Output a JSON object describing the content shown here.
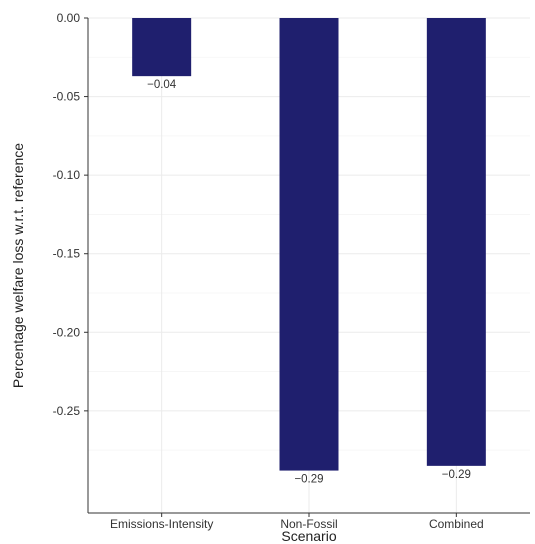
{
  "chart_data": {
    "type": "bar",
    "categories": [
      "Emissions-Intensity",
      "Non-Fossil",
      "Combined"
    ],
    "values": [
      -0.037,
      -0.288,
      -0.285
    ],
    "data_labels": [
      "−0.04",
      "−0.29",
      "−0.29"
    ],
    "xlabel": "Scenario",
    "ylabel": "Percentage welfare loss w.r.t. reference",
    "ylim": [
      -0.315,
      0.0
    ],
    "yticks": [
      0.0,
      -0.05,
      -0.1,
      -0.15,
      -0.2,
      -0.25
    ],
    "ytick_labels": [
      "0.00",
      "-0.05",
      "-0.10",
      "-0.15",
      "-0.20",
      "-0.25"
    ],
    "bar_color": "#1f1f6e",
    "grid": true,
    "legend": "none"
  }
}
